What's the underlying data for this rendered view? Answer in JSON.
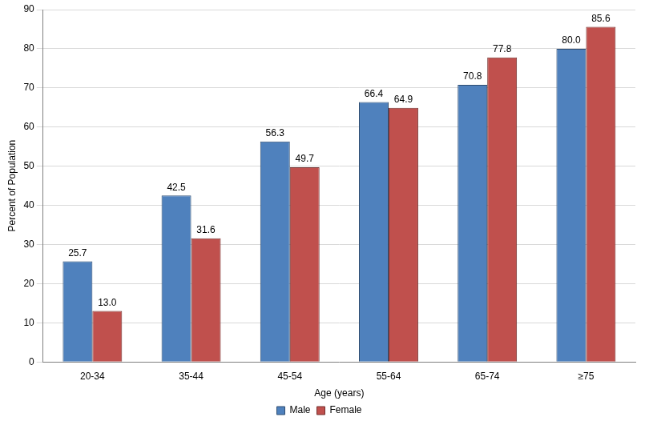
{
  "chart_data": {
    "type": "bar",
    "x_label": "Age (years)",
    "y_label": "Percent of Population",
    "categories": [
      "20-34",
      "35-44",
      "45-54",
      "55-64",
      "65-74",
      "≥75"
    ],
    "series": [
      {
        "name": "Male",
        "color": "#4f81bd",
        "values": [
          25.7,
          42.5,
          56.3,
          66.4,
          70.8,
          80.0
        ],
        "value_labels": [
          "25.7",
          "42.5",
          "56.3",
          "66.4",
          "70.8",
          "80.0"
        ]
      },
      {
        "name": "Female",
        "color": "#c0504d",
        "values": [
          13.0,
          31.6,
          49.7,
          64.9,
          77.8,
          85.6
        ],
        "value_labels": [
          "13.0",
          "31.6",
          "49.7",
          "64.9",
          "77.8",
          "85.6"
        ]
      }
    ],
    "ylim": [
      0,
      90
    ],
    "yticks": [
      0,
      10,
      20,
      30,
      40,
      50,
      60,
      70,
      80,
      90
    ],
    "grid": true,
    "legend": "bottom",
    "data_labels": true
  }
}
